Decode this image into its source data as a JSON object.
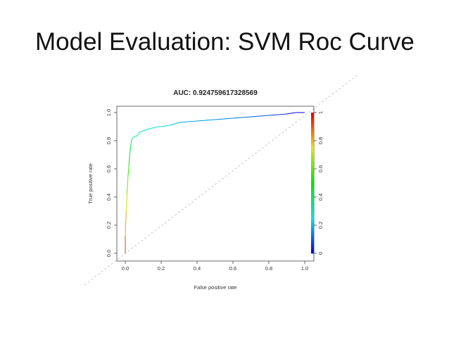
{
  "slide": {
    "title": "Model Evaluation: SVM Roc Curve"
  },
  "chart_data": {
    "type": "line",
    "title": "AUC: 0.924759617328569",
    "xlabel": "False positive rate",
    "ylabel": "True positive rate",
    "xlim": [
      0,
      1
    ],
    "ylim": [
      0,
      1
    ],
    "x_ticks": [
      "0.0",
      "0.2",
      "0.4",
      "0.6",
      "0.8",
      "1.0"
    ],
    "y_ticks": [
      "0.0",
      "0.2",
      "0.4",
      "0.6",
      "0.8",
      "1.0"
    ],
    "colorbar_ticks": [
      "0",
      "0.2",
      "0.4",
      "0.6",
      "0.8",
      "1"
    ],
    "grid": false,
    "reference_diagonal": true,
    "series": [
      {
        "x": [
          0.0,
          0.0,
          0.005,
          0.01,
          0.015,
          0.02,
          0.025,
          0.03,
          0.035,
          0.04,
          0.05,
          0.06,
          0.07,
          0.08,
          0.1,
          0.12,
          0.15,
          0.18,
          0.2,
          0.25,
          0.3,
          0.4,
          0.5,
          0.6,
          0.7,
          0.8,
          0.9,
          0.95,
          1.0
        ],
        "y": [
          0.0,
          0.12,
          0.3,
          0.42,
          0.54,
          0.62,
          0.7,
          0.76,
          0.8,
          0.82,
          0.83,
          0.83,
          0.84,
          0.86,
          0.87,
          0.88,
          0.89,
          0.9,
          0.9,
          0.91,
          0.93,
          0.94,
          0.95,
          0.96,
          0.97,
          0.98,
          0.99,
          1.0,
          1.0
        ]
      }
    ]
  }
}
